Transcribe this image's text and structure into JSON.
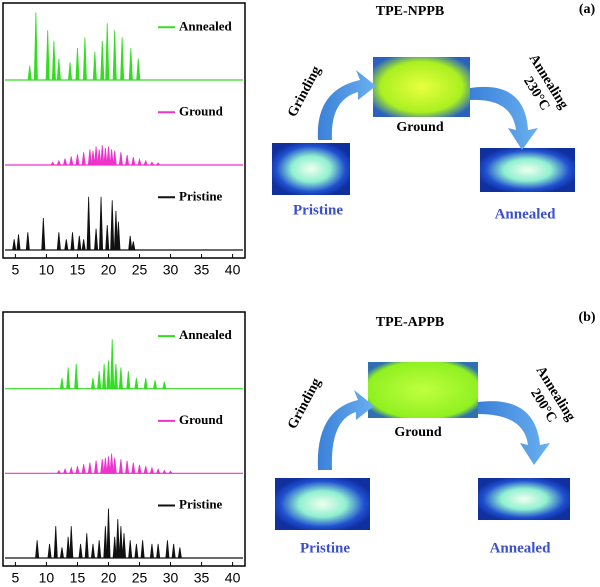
{
  "chart_data": [
    {
      "type": "stem",
      "xlim": [
        3,
        42
      ],
      "xticks": [
        5,
        10,
        15,
        20,
        25,
        30,
        35,
        40
      ],
      "ylim": [
        0,
        100
      ],
      "series": [
        {
          "name": "Annealed",
          "color": "#33dd22",
          "x": [
            7.3,
            8.3,
            10.2,
            11.2,
            12,
            13.8,
            15,
            16.2,
            17.8,
            19,
            19.8,
            21,
            22.2,
            23.6,
            24.8
          ],
          "values": [
            20,
            95,
            70,
            55,
            30,
            25,
            45,
            60,
            40,
            55,
            80,
            70,
            60,
            45,
            30
          ]
        },
        {
          "name": "Ground",
          "color": "#ee33cc",
          "x": [
            11,
            12,
            13,
            14,
            15,
            16,
            17,
            17.5,
            18,
            18.5,
            19,
            19.5,
            20,
            20.5,
            21,
            22,
            23,
            24,
            25,
            26,
            27,
            28
          ],
          "values": [
            4,
            6,
            9,
            12,
            15,
            18,
            22,
            20,
            26,
            22,
            28,
            24,
            26,
            22,
            20,
            18,
            14,
            11,
            8,
            6,
            4,
            3
          ]
        },
        {
          "name": "Pristine",
          "color": "#111111",
          "x": [
            4.8,
            5.5,
            7,
            9.5,
            12,
            13.2,
            14.2,
            15.3,
            16,
            16.8,
            18,
            18.8,
            19.8,
            20.6,
            21.2,
            21.6,
            23.5,
            24
          ],
          "values": [
            15,
            22,
            25,
            45,
            25,
            15,
            25,
            20,
            15,
            75,
            30,
            75,
            35,
            70,
            55,
            40,
            20,
            12
          ]
        }
      ]
    },
    {
      "type": "stem",
      "xlim": [
        3,
        42
      ],
      "xticks": [
        5,
        10,
        15,
        20,
        25,
        30,
        35,
        40
      ],
      "ylim": [
        0,
        100
      ],
      "series": [
        {
          "name": "Annealed",
          "color": "#33dd22",
          "x": [
            12.5,
            13.5,
            14.8,
            17.5,
            18.5,
            19.3,
            20,
            20.6,
            21.2,
            22,
            23.2,
            24.5,
            26,
            27.5,
            29
          ],
          "values": [
            15,
            30,
            35,
            15,
            25,
            35,
            40,
            70,
            35,
            30,
            25,
            15,
            15,
            12,
            10
          ]
        },
        {
          "name": "Ground",
          "color": "#ee33cc",
          "x": [
            12,
            13,
            14,
            15,
            16,
            17,
            18,
            19,
            19.5,
            20,
            20.5,
            21,
            22,
            23,
            24,
            25,
            26,
            27,
            28,
            29,
            30
          ],
          "values": [
            4,
            6,
            8,
            10,
            13,
            15,
            18,
            20,
            22,
            24,
            28,
            22,
            20,
            18,
            15,
            12,
            10,
            8,
            6,
            4,
            3
          ]
        },
        {
          "name": "Pristine",
          "color": "#111111",
          "x": [
            8.5,
            10.5,
            11.5,
            12.5,
            13.5,
            14,
            15.5,
            16.5,
            17.5,
            18.5,
            19.5,
            20,
            21,
            21.5,
            22,
            22.5,
            23.5,
            24.5,
            25.5,
            27,
            28,
            29.5,
            30.5,
            31.5
          ],
          "values": [
            25,
            20,
            45,
            15,
            30,
            45,
            20,
            35,
            20,
            25,
            45,
            70,
            30,
            55,
            45,
            35,
            25,
            20,
            25,
            20,
            20,
            25,
            20,
            15
          ]
        }
      ]
    }
  ],
  "schemes": [
    {
      "label": "(a)",
      "title": "TPE-NPPB",
      "left_step": "Grinding",
      "right_step": [
        "Annealing",
        "230°C"
      ],
      "states": [
        "Pristine",
        "Ground",
        "Annealed"
      ]
    },
    {
      "label": "(b)",
      "title": "TPE-APPB",
      "left_step": "Grinding",
      "right_step": [
        "Annealing",
        "200°C"
      ],
      "states": [
        "Pristine",
        "Ground",
        "Annealed"
      ]
    }
  ]
}
